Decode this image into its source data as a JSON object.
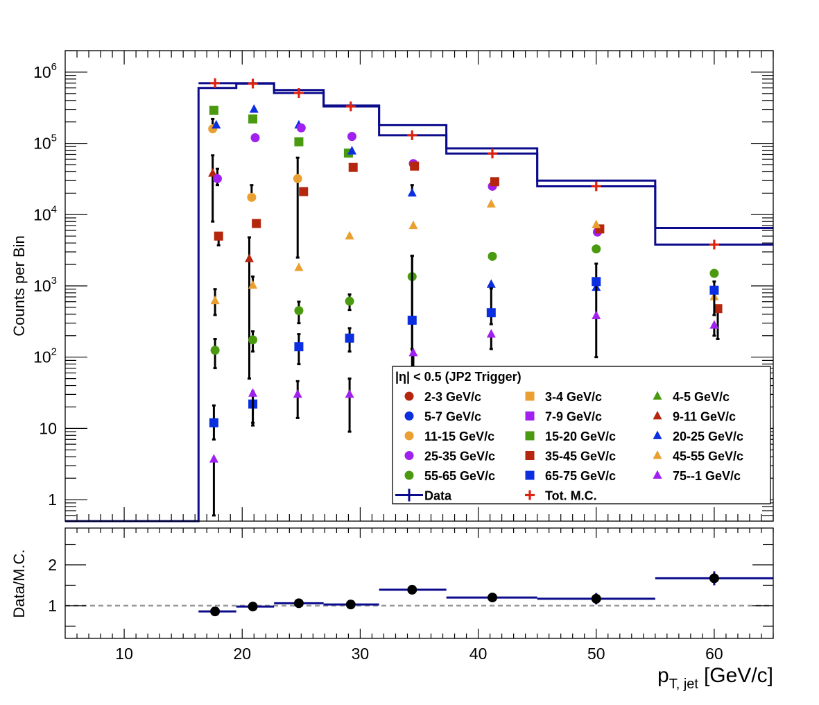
{
  "chart_data": [
    {
      "type": "scatter",
      "title": "",
      "ylabel": "Counts per Bin",
      "yscale": "log",
      "ylim": [
        0.5,
        2000000
      ],
      "xlim": [
        5,
        65
      ],
      "yticks": [
        {
          "value": 1,
          "base": "1",
          "exp": ""
        },
        {
          "value": 10,
          "base": "10",
          "exp": ""
        },
        {
          "value": 100,
          "base": "10",
          "exp": "2"
        },
        {
          "value": 1000,
          "base": "10",
          "exp": "3"
        },
        {
          "value": 10000,
          "base": "10",
          "exp": "4"
        },
        {
          "value": 100000,
          "base": "10",
          "exp": "5"
        },
        {
          "value": 1000000,
          "base": "10",
          "exp": "6"
        }
      ],
      "legend": {
        "title": "|η| < 0.5 (JP2 Trigger)",
        "position": "bottom-right",
        "entries": [
          "2-3 GeV/c",
          "3-4 GeV/c",
          "4-5 GeV/c",
          "5-7 GeV/c",
          "7-9 GeV/c",
          "9-11 GeV/c",
          "11-15 GeV/c",
          "15-20 GeV/c",
          "20-25 GeV/c",
          "25-35 GeV/c",
          "35-45 GeV/c",
          "45-55 GeV/c",
          "55-65 GeV/c",
          "65-75 GeV/c",
          "75--1 GeV/c",
          "Data",
          "Tot. M.C."
        ]
      },
      "data_hist": {
        "name": "Data",
        "color": "#0b0b8c",
        "edges": [
          5,
          16.3,
          19.5,
          22.7,
          26.9,
          31.6,
          37.3,
          45.0,
          55.0,
          65
        ],
        "values": [
          0.5,
          600000,
          700000,
          560000,
          340000,
          180000,
          85000,
          30000,
          6500
        ]
      },
      "mc_hist": {
        "name": "Tot. M.C.",
        "color": "#0b0b8c",
        "edges": [
          16.3,
          19.5,
          22.7,
          26.9,
          31.6,
          37.3,
          45.0,
          55.0,
          65
        ],
        "values": [
          700000,
          690000,
          510000,
          330000,
          130000,
          72000,
          25000,
          3800
        ]
      },
      "mc_points": {
        "name": "Tot. M.C.",
        "color": "#dd2211",
        "x": [
          17.7,
          20.9,
          24.8,
          29.2,
          34.4,
          41.2,
          50.0,
          60.0
        ],
        "y": [
          700000,
          690000,
          510000,
          330000,
          130000,
          72000,
          25000,
          3800
        ]
      },
      "series": [
        {
          "name": "2-3 GeV/c",
          "marker": "circle",
          "color": "#b5260e",
          "x": [],
          "y": []
        },
        {
          "name": "3-4 GeV/c",
          "marker": "square",
          "color": "#e9a030",
          "x": [],
          "y": []
        },
        {
          "name": "4-5 GeV/c",
          "marker": "triangle",
          "color": "#4a9a10",
          "x": [],
          "y": []
        },
        {
          "name": "5-7 GeV/c",
          "marker": "circle",
          "color": "#0a2ee0",
          "x": [],
          "y": []
        },
        {
          "name": "7-9 GeV/c",
          "marker": "square",
          "color": "#a020f0",
          "x": [],
          "y": []
        },
        {
          "name": "9-11 GeV/c",
          "marker": "triangle",
          "color": "#b5260e",
          "x": [
            17.5,
            20.6
          ],
          "y": [
            38000,
            2400
          ],
          "err_low": [
            30000,
            2350
          ],
          "err_high": [
            30000,
            2400
          ]
        },
        {
          "name": "11-15 GeV/c",
          "marker": "circle",
          "color": "#e9a030",
          "x": [
            17.5,
            20.8,
            24.7
          ],
          "y": [
            160000,
            17500,
            32000
          ],
          "err_low": [
            0,
            0,
            29500
          ],
          "err_high": [
            60000,
            8500,
            31000
          ]
        },
        {
          "name": "15-20 GeV/c",
          "marker": "square",
          "color": "#4a9a10",
          "x": [
            17.6,
            20.9,
            24.8,
            29.0
          ],
          "y": [
            290000,
            220000,
            105000,
            73000
          ]
        },
        {
          "name": "20-25 GeV/c",
          "marker": "triangle",
          "color": "#0a2ee0",
          "x": [
            17.8,
            21.0,
            24.8,
            29.3,
            34.4,
            41.1,
            50.0
          ],
          "y": [
            180000,
            300000,
            180000,
            78000,
            20000,
            1050,
            950
          ],
          "err_low": [
            0,
            0,
            0,
            0,
            0,
            0,
            0
          ],
          "err_high": [
            0,
            0,
            0,
            0,
            6000,
            0,
            0
          ]
        },
        {
          "name": "25-35 GeV/c",
          "marker": "circle",
          "color": "#a020f0",
          "x": [
            17.9,
            21.1,
            25.0,
            29.3,
            34.5,
            41.2,
            50.1
          ],
          "y": [
            32000,
            120000,
            165000,
            125000,
            52000,
            25000,
            5700
          ],
          "err_low": [
            6000,
            0,
            0,
            0,
            0,
            0,
            0
          ],
          "err_high": [
            12000,
            0,
            0,
            0,
            0,
            0,
            0
          ]
        },
        {
          "name": "35-45 GeV/c",
          "marker": "square",
          "color": "#b5260e",
          "x": [
            18.0,
            21.2,
            25.2,
            29.4,
            34.6,
            41.4,
            50.3,
            60.3
          ],
          "y": [
            5000,
            7500,
            21000,
            46000,
            48000,
            29000,
            6300,
            480
          ],
          "err_low": [
            1300,
            0,
            0,
            0,
            0,
            0,
            0,
            300
          ],
          "err_high": [
            0,
            0,
            0,
            0,
            0,
            0,
            0,
            0
          ]
        },
        {
          "name": "45-55 GeV/c",
          "marker": "triangle",
          "color": "#e9a030",
          "x": [
            17.7,
            20.9,
            24.8,
            29.1,
            34.5,
            41.1,
            50.0,
            60.0
          ],
          "y": [
            620,
            1020,
            1800,
            5000,
            7000,
            14000,
            7200,
            700
          ],
          "err_low": [
            230,
            0,
            0,
            0,
            0,
            0,
            0,
            0
          ],
          "err_high": [
            280,
            330,
            0,
            0,
            0,
            0,
            0,
            0
          ]
        },
        {
          "name": "55-65 GeV/c",
          "marker": "circle",
          "color": "#4a9a10",
          "x": [
            17.7,
            20.9,
            24.8,
            29.1,
            34.4,
            41.2,
            50.0,
            60.0
          ],
          "y": [
            125,
            175,
            450,
            610,
            1350,
            2600,
            3300,
            1500
          ],
          "err_low": [
            55,
            55,
            150,
            150,
            1349,
            0,
            0,
            0
          ],
          "err_high": [
            55,
            55,
            150,
            150,
            1300,
            0,
            0,
            0
          ]
        },
        {
          "name": "65-75 GeV/c",
          "marker": "square",
          "color": "#0a2ee0",
          "x": [
            17.6,
            20.9,
            24.8,
            29.1,
            34.4,
            41.1,
            50.0,
            60.0
          ],
          "y": [
            12,
            22,
            140,
            185,
            330,
            420,
            1150,
            870
          ],
          "err_low": [
            5,
            10,
            60,
            65,
            200,
            130,
            1050,
            480
          ],
          "err_high": [
            9,
            11,
            70,
            70,
            2300,
            500,
            900,
            280
          ]
        },
        {
          "name": "75--1 GeV/c",
          "marker": "triangle",
          "color": "#a020f0",
          "x": [
            17.6,
            20.9,
            24.7,
            29.1,
            34.5,
            41.1,
            50.0,
            60.0
          ],
          "y": [
            3.7,
            31,
            30,
            30,
            115,
            210,
            380,
            280
          ],
          "err_low": [
            3.1,
            20,
            16,
            21,
            114,
            80,
            0,
            80
          ],
          "err_high": [
            0,
            0,
            16,
            20,
            0,
            0,
            0,
            0
          ]
        }
      ]
    },
    {
      "type": "scatter",
      "title": "",
      "ylabel": "Data/M.C.",
      "xlabel_main": "p",
      "xlabel_sub": "T, jet",
      "xlabel_unit": "[GeV/c]",
      "xlim": [
        5,
        65
      ],
      "ylim": [
        0.2,
        2.9
      ],
      "xticks": [
        10,
        20,
        30,
        40,
        50,
        60
      ],
      "yticks": [
        1,
        2
      ],
      "reference_line": 1,
      "series": [
        {
          "name": "Data/M.C.",
          "color": "#0b0b8c",
          "x": [
            17.7,
            20.9,
            24.8,
            29.2,
            34.4,
            41.2,
            50.0,
            60.0
          ],
          "y": [
            0.86,
            0.98,
            1.06,
            1.03,
            1.39,
            1.2,
            1.17,
            1.67
          ],
          "xlow": [
            16.3,
            19.5,
            22.7,
            26.9,
            31.6,
            37.3,
            45.0,
            55.0
          ],
          "xhigh": [
            19.5,
            22.7,
            26.9,
            31.6,
            37.3,
            45.0,
            55.0,
            65.0
          ],
          "yerr": [
            0.03,
            0.03,
            0.04,
            0.04,
            0.09,
            0.06,
            0.14,
            0.17
          ]
        }
      ]
    }
  ]
}
